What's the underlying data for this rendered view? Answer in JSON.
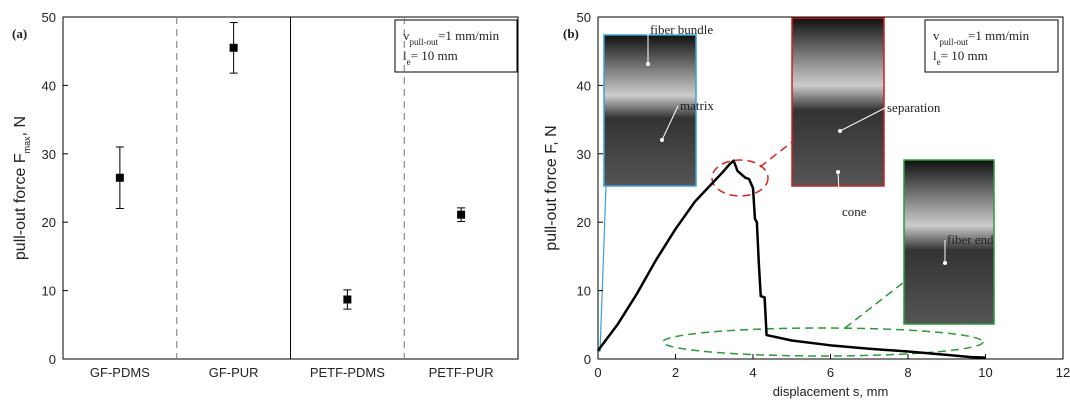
{
  "chart_data": [
    {
      "type": "errorbar",
      "panel": "(a)",
      "ylabel": {
        "text": "pull-out force F",
        "sub": "max",
        "rest": ", N"
      },
      "annotation": [
        {
          "text": "v",
          "sub": "pull-out",
          "rest": "=1 mm/min"
        },
        {
          "text": "l",
          "sub": "e",
          "rest": "= 10 mm"
        }
      ],
      "categories": [
        "GF-PDMS",
        "GF-PUR",
        "PETF-PDMS",
        "PETF-PUR"
      ],
      "values": [
        26.5,
        45.5,
        8.7,
        21.1
      ],
      "errors": [
        4.5,
        3.7,
        1.4,
        1.0
      ],
      "color": "#000000",
      "ylim": [
        0,
        50
      ],
      "yticks": [
        0,
        10,
        20,
        30,
        40,
        50
      ]
    },
    {
      "type": "line",
      "panel": "(b)",
      "xlabel": "displacement s, mm",
      "ylabel": {
        "text": "pull-out force F, N"
      },
      "annotation": [
        {
          "text": "v",
          "sub": "pull-out",
          "rest": "=1 mm/min"
        },
        {
          "text": "l",
          "sub": "e",
          "rest": "= 10 mm"
        }
      ],
      "photo_labels": [
        "fiber bundle",
        "matrix",
        "separation",
        "cone",
        "fiber end"
      ],
      "x": [
        0,
        0.1,
        0.5,
        1,
        1.5,
        2,
        2.5,
        3,
        3.2,
        3.4,
        3.5,
        3.6,
        3.7,
        3.8,
        3.9,
        4.0,
        4.05,
        4.1,
        4.15,
        4.2,
        4.3,
        4.35,
        5,
        6,
        7,
        8,
        9,
        9.6,
        10
      ],
      "values": [
        1.2,
        2,
        5,
        9.5,
        14.5,
        19,
        23,
        26,
        27.2,
        28.5,
        29,
        27.5,
        27,
        26.5,
        26.3,
        25,
        20.5,
        20,
        14,
        9.2,
        9,
        3.5,
        2.7,
        2,
        1.5,
        1.1,
        0.6,
        0.3,
        0.2
      ],
      "color": "#000000",
      "xlim": [
        0,
        12
      ],
      "xticks": [
        0,
        2,
        4,
        6,
        8,
        10,
        12
      ],
      "ylim": [
        0,
        50
      ],
      "yticks": [
        0,
        10,
        20,
        30,
        40,
        50
      ]
    }
  ]
}
